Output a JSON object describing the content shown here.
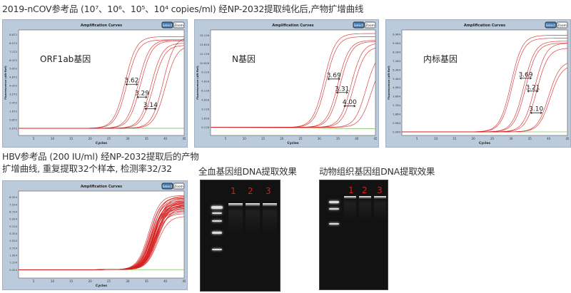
{
  "title_top": "2019-nCOV参考品 (10⁷、10⁶、10⁵、10⁴ copies/ml) 经NP-2032提取纯化后,产物扩增曲线",
  "hbv_caption": [
    "HBV参考品 (200 IU/ml) 经NP-2032提取后的产物",
    "扩增曲线, 重复提取32个样本, 检测率32/32"
  ],
  "gel1": {
    "title": "全血基因组DNA提取效果",
    "lanes": [
      "1",
      "2",
      "3"
    ]
  },
  "gel2": {
    "title": "动物组织基因组DNA提取效果",
    "lanes": [
      "1",
      "2",
      "3"
    ]
  },
  "colors": {
    "curve": "#d42020",
    "baseline_control": "#7cc060",
    "panel": "#bccbdc",
    "select_button": "#4a7fb5"
  },
  "chart_data": [
    {
      "type": "line",
      "title": "Amplification Curves",
      "xlabel": "Cycles",
      "ylabel": "Fluorescence (dR-Ref)",
      "label": "ORF1ab基因",
      "buttons": [
        "Select",
        "Zoom"
      ],
      "xlim": [
        1,
        45
      ],
      "xticks": [
        "5",
        "10",
        "15",
        "20",
        "25",
        "30",
        "35",
        "40",
        "45"
      ],
      "ylim": [
        -0.6,
        9.3
      ],
      "yticks": [
        "0.072",
        "0.872",
        "1.672",
        "2.472",
        "3.272",
        "4.072",
        "4.872",
        "5.672",
        "6.472",
        "7.272",
        "8.072",
        "8.872"
      ],
      "baseline": 0.072,
      "curves": [
        [
          29.3,
          8.6
        ],
        [
          29.8,
          8.3
        ],
        [
          32.8,
          8.3
        ],
        [
          33.4,
          8.2
        ],
        [
          36.2,
          8.0
        ],
        [
          36.8,
          7.8
        ],
        [
          39.4,
          8.6
        ],
        [
          40.0,
          7.8
        ]
      ],
      "annotations": [
        {
          "text": "3.62",
          "x1": 29.5,
          "x2": 32.6,
          "y": 4.2
        },
        {
          "text": "3.29",
          "x1": 32.5,
          "x2": 35.1,
          "y": 3.0
        },
        {
          "text": "3.14",
          "x1": 34.6,
          "x2": 37.5,
          "y": 1.9
        }
      ]
    },
    {
      "type": "line",
      "title": "Amplification Curves",
      "xlabel": "Cycles",
      "ylabel": "Fluorescence (dR-Ref)",
      "label": "N基因",
      "buttons": [
        "Select",
        "Zoom"
      ],
      "xlim": [
        1,
        45
      ],
      "xticks": [
        "5",
        "10",
        "15",
        "20",
        "25",
        "30",
        "35",
        "40",
        "45"
      ],
      "ylim": [
        -1.2,
        16
      ],
      "yticks": [
        "0.116",
        "1.616",
        "3.116",
        "4.616",
        "6.116",
        "7.616",
        "9.116",
        "10.616",
        "12.116",
        "13.616",
        "15.116"
      ],
      "baseline": 0.116,
      "curves": [
        [
          31.3,
          15.3
        ],
        [
          31.8,
          14.8
        ],
        [
          35.0,
          14.2
        ],
        [
          35.6,
          14.0
        ],
        [
          38.5,
          13.8
        ],
        [
          39.2,
          13.2
        ],
        [
          42.5,
          12.5
        ],
        [
          43.8,
          11.0
        ]
      ],
      "annotations": [
        {
          "text": "3.69",
          "x1": 32.3,
          "x2": 35.5,
          "y": 8.0
        },
        {
          "text": "3.31",
          "x1": 34.6,
          "x2": 37.6,
          "y": 5.8
        },
        {
          "text": "4.00",
          "x1": 36.6,
          "x2": 39.6,
          "y": 3.6
        }
      ]
    },
    {
      "type": "line",
      "title": "Amplification Curves",
      "xlabel": "Cycles",
      "ylabel": "Fluorescence (dR-Ref)",
      "label": "内标基因",
      "buttons": [
        "Select",
        "Zoom"
      ],
      "xlim": [
        1,
        45
      ],
      "xticks": [
        "5",
        "10",
        "15",
        "20",
        "25",
        "30",
        "35",
        "40",
        "45"
      ],
      "ylim": [
        -0.3,
        10.4
      ],
      "yticks": [
        "0.064",
        "0.964",
        "1.864",
        "2.764",
        "3.664",
        "4.564",
        "5.464",
        "6.364",
        "7.264",
        "8.164",
        "9.064",
        "9.964"
      ],
      "baseline": 0.064,
      "curves": [
        [
          30.0,
          9.8
        ],
        [
          30.4,
          9.5
        ],
        [
          33.4,
          9.2
        ],
        [
          33.9,
          9.0
        ],
        [
          36.3,
          9.0
        ],
        [
          36.9,
          8.5
        ],
        [
          40.0,
          7.2
        ],
        [
          40.4,
          6.8
        ]
      ],
      "annotations": [
        {
          "text": "3.69",
          "x1": 32.4,
          "x2": 35.4,
          "y": 5.5
        },
        {
          "text": "3.21",
          "x1": 34.4,
          "x2": 37.2,
          "y": 4.2
        },
        {
          "text": "3.10",
          "x1": 35.2,
          "x2": 38.2,
          "y": 2.0
        }
      ]
    },
    {
      "type": "line",
      "title": "Amplification Curves",
      "xlabel": "Cycles",
      "buttons": [
        "Select",
        "Zoom"
      ],
      "xlim": [
        1,
        45
      ],
      "xticks": [
        "5",
        "10",
        "15",
        "20",
        "25",
        "30",
        "35",
        "40",
        "45"
      ],
      "ylim": [
        -0.6,
        9.0
      ],
      "yticks": [
        "0.324",
        "1.124",
        "1.924",
        "2.724",
        "3.524",
        "4.324",
        "5.124",
        "5.924",
        "6.724",
        "7.524",
        "8.324"
      ],
      "baseline": 0.324,
      "curves": [
        [
          35.6,
          8.2
        ],
        [
          35.8,
          7.9
        ],
        [
          36.0,
          8.0
        ],
        [
          36.1,
          7.6
        ],
        [
          36.3,
          7.8
        ],
        [
          36.4,
          7.4
        ],
        [
          36.5,
          8.1
        ],
        [
          36.6,
          7.2
        ],
        [
          36.7,
          7.5
        ],
        [
          36.8,
          7.0
        ],
        [
          36.9,
          7.7
        ],
        [
          37.0,
          7.3
        ],
        [
          37.1,
          6.9
        ],
        [
          37.2,
          7.6
        ],
        [
          37.3,
          7.1
        ],
        [
          37.4,
          6.8
        ],
        [
          37.5,
          7.4
        ],
        [
          37.6,
          7.0
        ],
        [
          37.7,
          6.6
        ],
        [
          37.8,
          7.2
        ],
        [
          36.2,
          7.0
        ],
        [
          36.5,
          6.7
        ],
        [
          36.9,
          6.5
        ],
        [
          37.1,
          7.9
        ],
        [
          37.3,
          6.9
        ],
        [
          37.5,
          6.4
        ],
        [
          36.4,
          7.3
        ],
        [
          36.8,
          7.1
        ],
        [
          37.0,
          6.2
        ],
        [
          37.6,
          7.5
        ],
        [
          37.9,
          5.9
        ],
        [
          38.0,
          6.8
        ]
      ],
      "annotations": []
    }
  ]
}
